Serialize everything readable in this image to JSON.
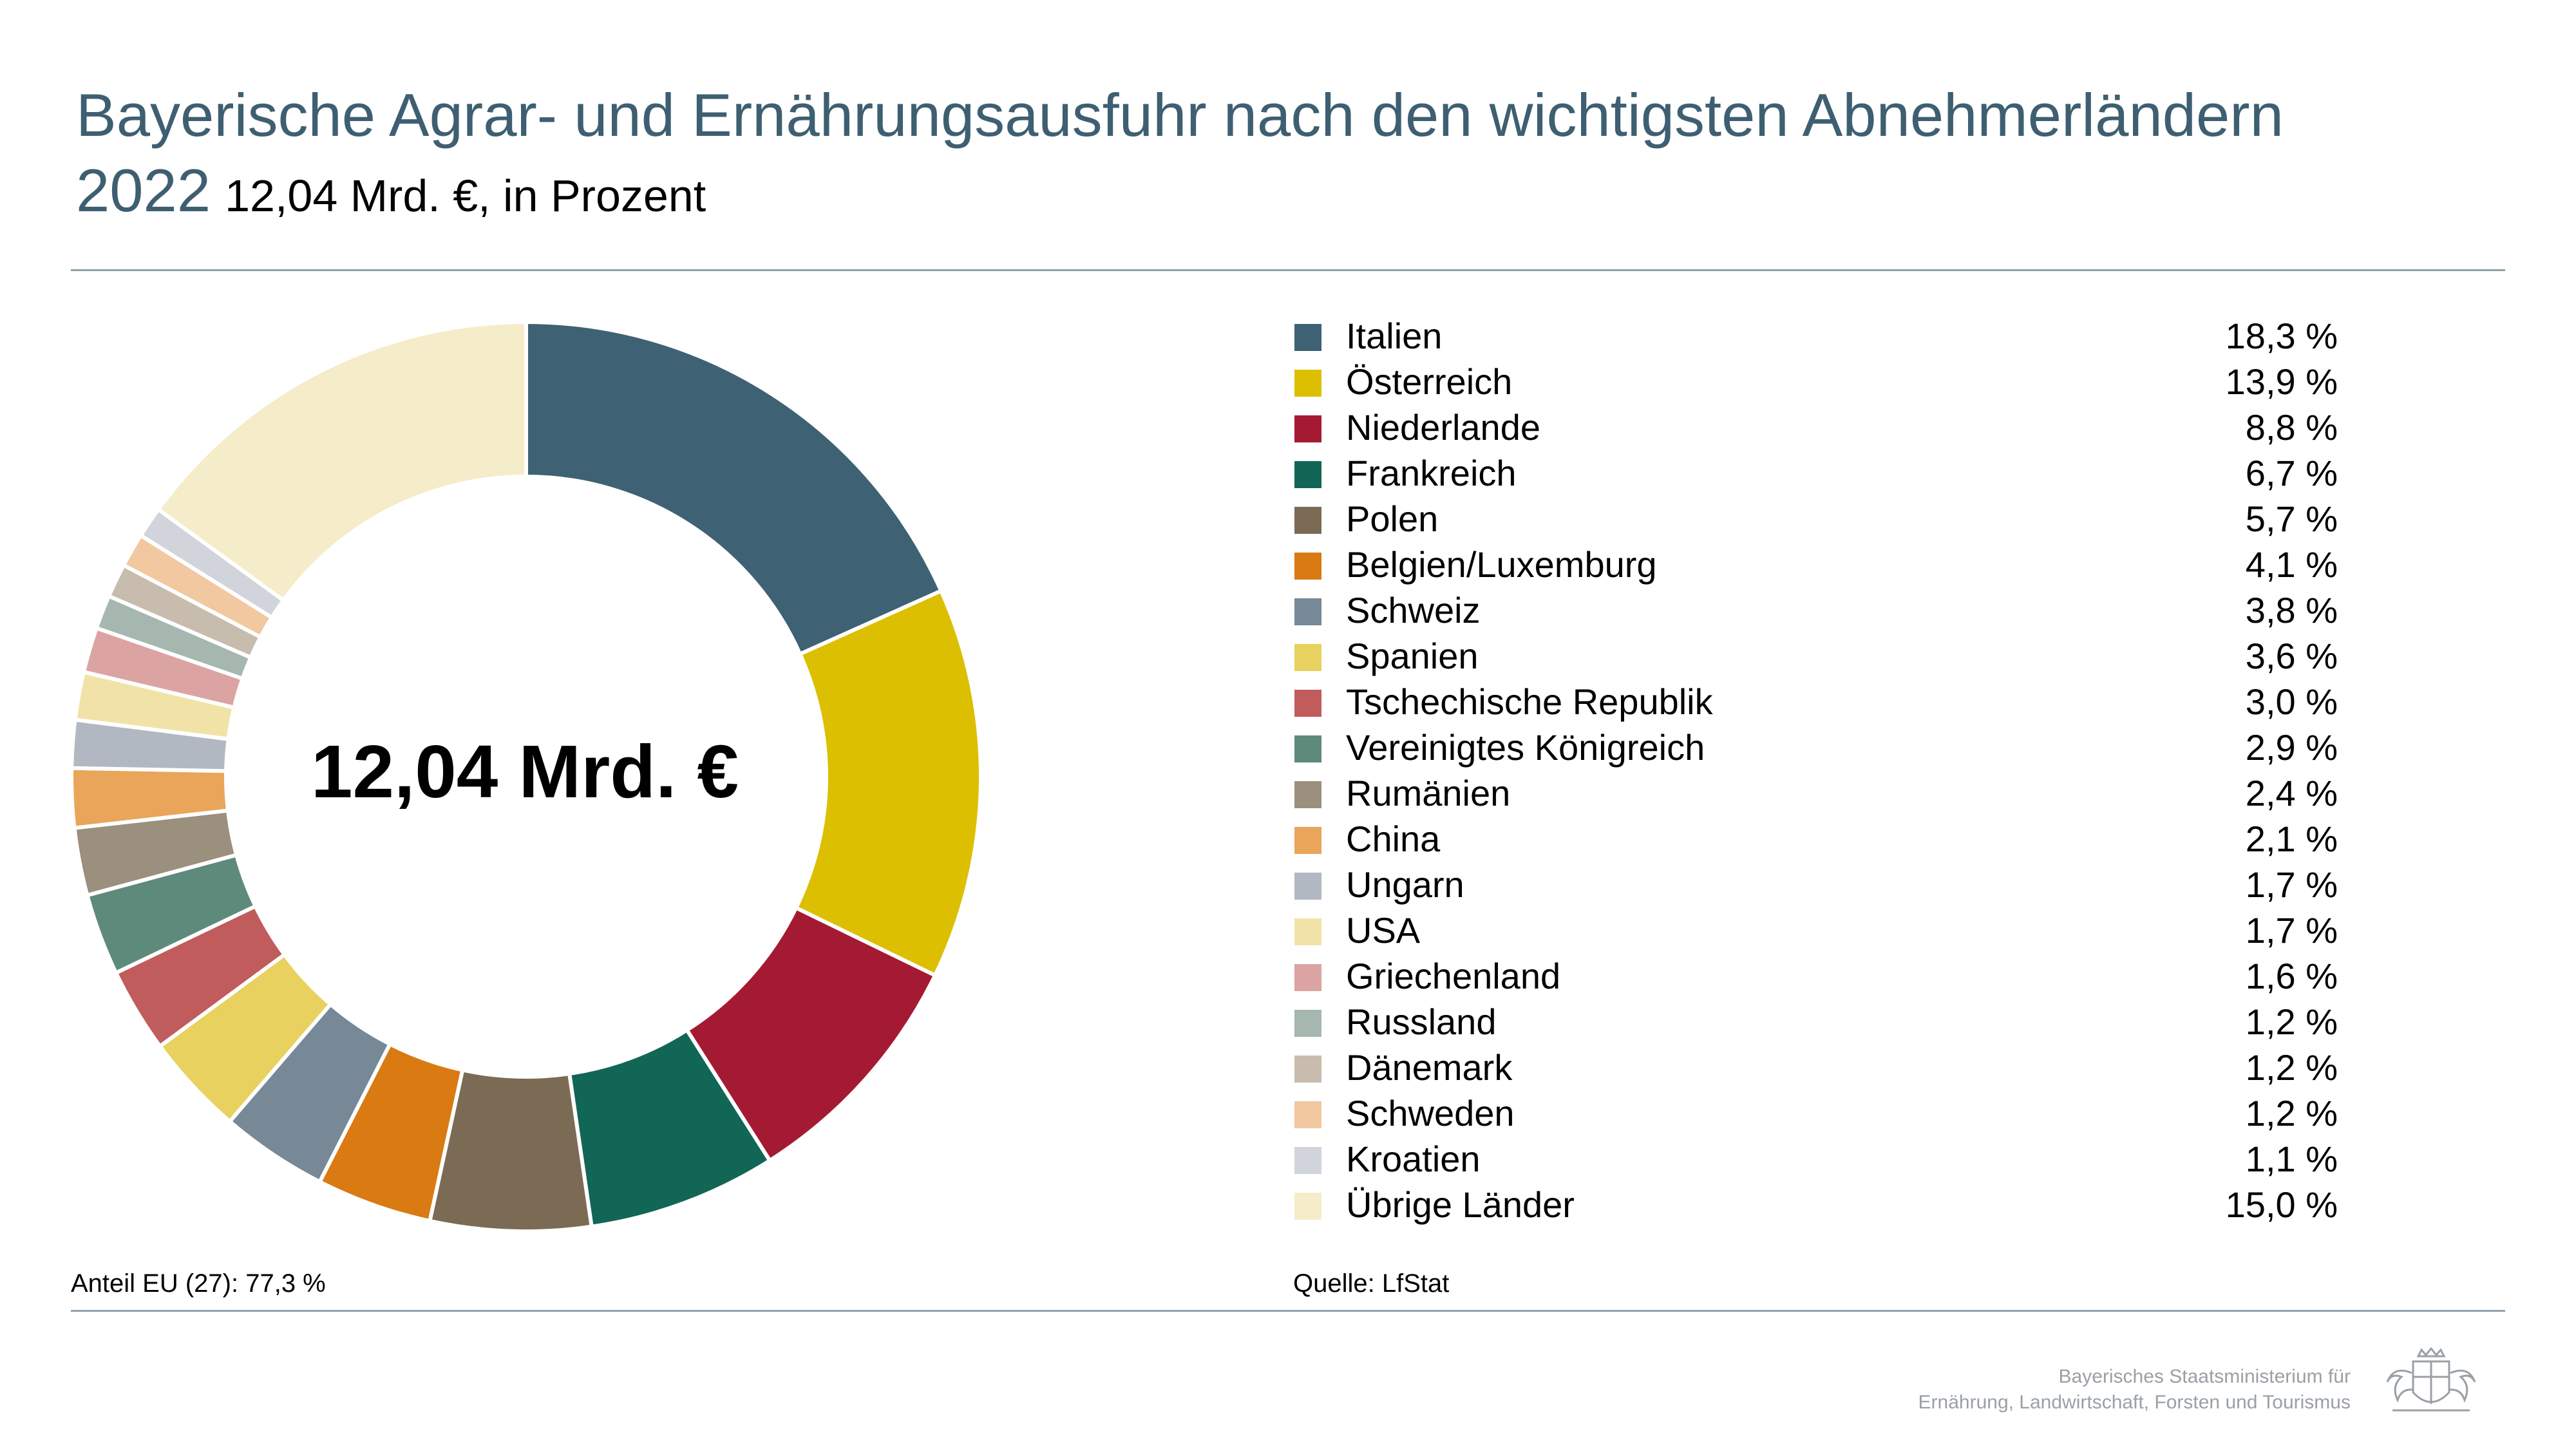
{
  "title_main": "Bayerische Agrar- und Ernährungsausfuhr nach den wichtigsten Abnehmerländern 2022",
  "title_sub": "12,04 Mrd. €, in Prozent",
  "center_label": "12,04 Mrd. €",
  "footnote_left": "Anteil EU (27): 77,3 %",
  "footnote_right": "Quelle: LfStat",
  "ministry_line1": "Bayerisches Staatsministerium für",
  "ministry_line2": "Ernährung, Landwirtschaft, Forsten und Tourismus",
  "chart_data": {
    "type": "pie",
    "subtype": "donut",
    "title": "Bayerische Agrar- und Ernährungsausfuhr nach den wichtigsten Abnehmerländern 2022",
    "subtitle": "12,04 Mrd. €, in Prozent",
    "unit": "%",
    "legend_position": "right",
    "slices": [
      {
        "label": "Italien",
        "value": 18.3,
        "display": "18,3 %",
        "color": "#3e6174"
      },
      {
        "label": "Österreich",
        "value": 13.9,
        "display": "13,9 %",
        "color": "#dcbf00"
      },
      {
        "label": "Niederlande",
        "value": 8.8,
        "display": "8,8 %",
        "color": "#a51a33"
      },
      {
        "label": "Frankreich",
        "value": 6.7,
        "display": "6,7 %",
        "color": "#126656"
      },
      {
        "label": "Polen",
        "value": 5.7,
        "display": "5,7 %",
        "color": "#7b6b55"
      },
      {
        "label": "Belgien/Luxemburg",
        "value": 4.1,
        "display": "4,1 %",
        "color": "#d97a12"
      },
      {
        "label": "Schweiz",
        "value": 3.8,
        "display": "3,8 %",
        "color": "#778896"
      },
      {
        "label": "Spanien",
        "value": 3.6,
        "display": "3,6 %",
        "color": "#e8d15e"
      },
      {
        "label": "Tschechische Republik",
        "value": 3.0,
        "display": "3,0 %",
        "color": "#c05c5c"
      },
      {
        "label": "Vereinigtes Königreich",
        "value": 2.9,
        "display": "2,9 %",
        "color": "#5e8a7c"
      },
      {
        "label": "Rumänien",
        "value": 2.4,
        "display": "2,4 %",
        "color": "#9b8f7d"
      },
      {
        "label": "China",
        "value": 2.1,
        "display": "2,1 %",
        "color": "#e9a55a"
      },
      {
        "label": "Ungarn",
        "value": 1.7,
        "display": "1,7 %",
        "color": "#b2b8c1"
      },
      {
        "label": "USA",
        "value": 1.7,
        "display": "1,7 %",
        "color": "#f1e3a8"
      },
      {
        "label": "Griechenland",
        "value": 1.6,
        "display": "1,6 %",
        "color": "#dba4a3"
      },
      {
        "label": "Russland",
        "value": 1.2,
        "display": "1,2 %",
        "color": "#a5b7ae"
      },
      {
        "label": "Dänemark",
        "value": 1.2,
        "display": "1,2 %",
        "color": "#c7bcae"
      },
      {
        "label": "Schweden",
        "value": 1.2,
        "display": "1,2 %",
        "color": "#f2c8a0"
      },
      {
        "label": "Kroatien",
        "value": 1.1,
        "display": "1,1 %",
        "color": "#d1d4da"
      },
      {
        "label": "Übrige Länder",
        "value": 15.0,
        "display": "15,0 %",
        "color": "#f5ecc9"
      }
    ]
  }
}
